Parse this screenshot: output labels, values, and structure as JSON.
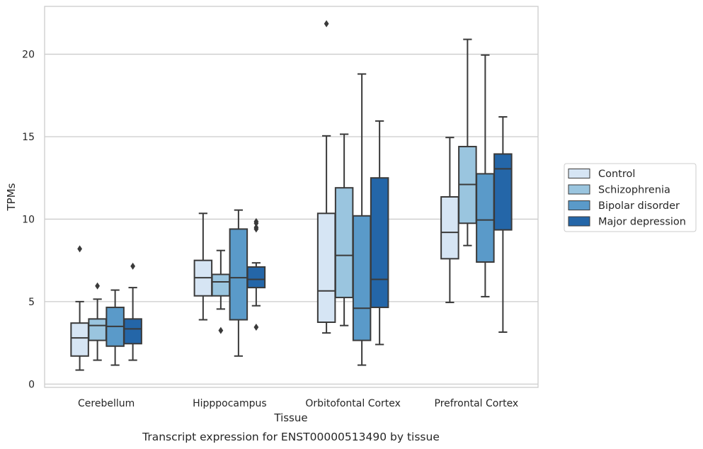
{
  "chart_data": {
    "type": "box",
    "caption": "Transcript expression for ENST00000513490 by tissue",
    "xlabel": "Tissue",
    "ylabel": "TPMs",
    "ylim": [
      -0.2,
      22.9
    ],
    "yticks": [
      0,
      5,
      10,
      15,
      20
    ],
    "grid": "horizontal",
    "legend_position": "right",
    "categories": [
      "Cerebellum",
      "Hipppocampus",
      "Orbitofontal Cortex",
      "Prefrontal Cortex"
    ],
    "series": [
      {
        "name": "Control",
        "color": "#d6e5f4",
        "boxes": [
          {
            "whislo": 0.85,
            "q1": 1.7,
            "med": 2.8,
            "q3": 3.7,
            "whishi": 5.0,
            "fliers": [
              8.2
            ]
          },
          {
            "whislo": 3.9,
            "q1": 5.35,
            "med": 6.45,
            "q3": 7.5,
            "whishi": 10.35,
            "fliers": []
          },
          {
            "whislo": 3.1,
            "q1": 3.75,
            "med": 5.65,
            "q3": 10.35,
            "whishi": 15.05,
            "fliers": [
              21.85
            ]
          },
          {
            "whislo": 4.95,
            "q1": 7.6,
            "med": 9.2,
            "q3": 11.35,
            "whishi": 14.95,
            "fliers": []
          }
        ]
      },
      {
        "name": "Schizophrenia",
        "color": "#9ac5df",
        "boxes": [
          {
            "whislo": 1.45,
            "q1": 2.65,
            "med": 3.55,
            "q3": 3.95,
            "whishi": 5.15,
            "fliers": [
              5.95
            ]
          },
          {
            "whislo": 4.55,
            "q1": 5.35,
            "med": 6.2,
            "q3": 6.65,
            "whishi": 8.1,
            "fliers": [
              3.25
            ]
          },
          {
            "whislo": 3.55,
            "q1": 5.25,
            "med": 7.8,
            "q3": 11.9,
            "whishi": 15.15,
            "fliers": []
          },
          {
            "whislo": 8.4,
            "q1": 9.75,
            "med": 12.1,
            "q3": 14.4,
            "whishi": 20.9,
            "fliers": []
          }
        ]
      },
      {
        "name": "Bipolar disorder",
        "color": "#5a9ac9",
        "boxes": [
          {
            "whislo": 1.15,
            "q1": 2.3,
            "med": 3.5,
            "q3": 4.65,
            "whishi": 5.7,
            "fliers": []
          },
          {
            "whislo": 1.7,
            "q1": 3.9,
            "med": 6.45,
            "q3": 9.4,
            "whishi": 10.55,
            "fliers": []
          },
          {
            "whislo": 1.15,
            "q1": 2.65,
            "med": 4.6,
            "q3": 10.2,
            "whishi": 18.8,
            "fliers": []
          },
          {
            "whislo": 5.3,
            "q1": 7.4,
            "med": 9.95,
            "q3": 12.75,
            "whishi": 19.95,
            "fliers": []
          }
        ]
      },
      {
        "name": "Major depression",
        "color": "#2466a8",
        "boxes": [
          {
            "whislo": 1.45,
            "q1": 2.45,
            "med": 3.35,
            "q3": 3.95,
            "whishi": 5.85,
            "fliers": [
              7.15
            ]
          },
          {
            "whislo": 4.75,
            "q1": 5.85,
            "med": 6.35,
            "q3": 7.1,
            "whishi": 7.35,
            "fliers": [
              9.4,
              9.5,
              9.75,
              9.85,
              3.45
            ]
          },
          {
            "whislo": 2.4,
            "q1": 4.65,
            "med": 6.35,
            "q3": 12.5,
            "whishi": 15.95,
            "fliers": []
          },
          {
            "whislo": 3.15,
            "q1": 9.35,
            "med": 13.05,
            "q3": 13.95,
            "whishi": 16.2,
            "fliers": []
          }
        ]
      }
    ]
  }
}
